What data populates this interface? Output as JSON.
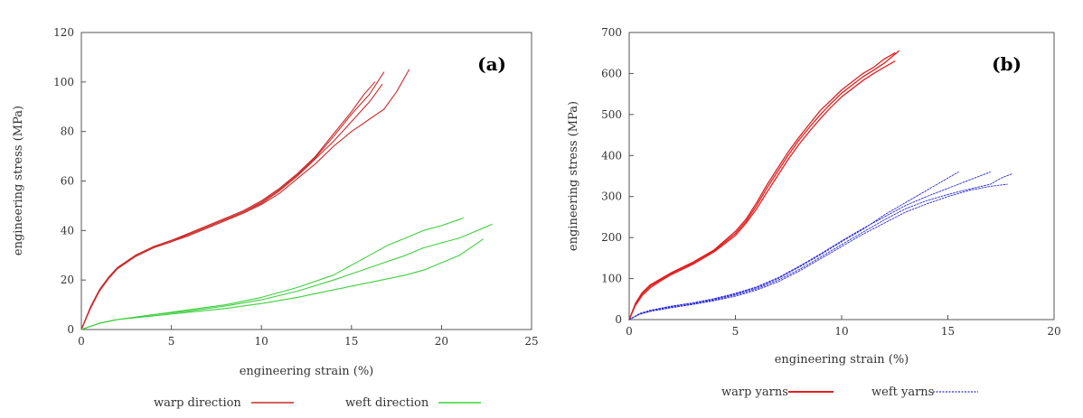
{
  "chart_data": [
    {
      "type": "line",
      "panel_label": "(a)",
      "xlabel": "engineering strain (%)",
      "ylabel": "engineering stress (MPa)",
      "xlim": [
        0,
        25
      ],
      "ylim": [
        0,
        120
      ],
      "xticks": [
        0,
        5,
        10,
        15,
        20,
        25
      ],
      "yticks": [
        0,
        20,
        40,
        60,
        80,
        100,
        120
      ],
      "grid": false,
      "legend_position": "bottom",
      "series": [
        {
          "name": "warp direction",
          "color": "#cc2b2b",
          "curves": [
            {
              "x": [
                0,
                0.5,
                1,
                1.5,
                2,
                3,
                4,
                5,
                6,
                7,
                8,
                9,
                10,
                11,
                12,
                13,
                14,
                15,
                15.7,
                16.3
              ],
              "y": [
                0,
                9,
                16,
                21,
                25,
                30,
                33.5,
                36,
                39,
                42,
                45,
                48,
                52,
                57,
                63,
                70,
                79,
                88,
                95,
                100
              ]
            },
            {
              "x": [
                0,
                0.5,
                1,
                1.5,
                2,
                3,
                4,
                5,
                6,
                7,
                8,
                9,
                10,
                11,
                12,
                13,
                14,
                15,
                16,
                16.8
              ],
              "y": [
                0,
                8.5,
                15.5,
                20.5,
                24.5,
                29.5,
                33,
                35.5,
                38.5,
                41.5,
                44.5,
                47.5,
                51.5,
                56.5,
                62.5,
                69.5,
                78,
                87,
                95,
                104
              ]
            },
            {
              "x": [
                0,
                0.5,
                1,
                1.5,
                2,
                3,
                4,
                5,
                6,
                7,
                8,
                9,
                10,
                11,
                12,
                13,
                14,
                15,
                16,
                16.8,
                17.5,
                18.2
              ],
              "y": [
                0,
                8.5,
                15.5,
                20.5,
                24.5,
                29.5,
                33,
                35.5,
                38,
                41,
                44,
                47,
                50.5,
                55,
                61,
                67,
                74,
                80,
                85,
                89,
                96,
                105
              ]
            },
            {
              "x": [
                0,
                0.5,
                1,
                1.5,
                2,
                3,
                4,
                5,
                6,
                7,
                8,
                9,
                10,
                11,
                12,
                13,
                14,
                15,
                16,
                16.7
              ],
              "y": [
                0,
                9,
                16,
                21,
                25,
                30,
                33.5,
                36,
                38.5,
                41.5,
                44.5,
                47.5,
                51,
                56,
                62,
                69,
                76,
                84,
                92,
                99
              ]
            }
          ]
        },
        {
          "name": "weft direction",
          "color": "#3fcf3f",
          "curves": [
            {
              "x": [
                0,
                1,
                2,
                4,
                6,
                8,
                10,
                12,
                14,
                16,
                17,
                18,
                19,
                20,
                21.2
              ],
              "y": [
                0,
                2.5,
                4,
                6,
                8,
                10,
                13,
                17,
                22,
                30,
                34,
                37,
                40,
                42,
                45
              ]
            },
            {
              "x": [
                0,
                1,
                2,
                4,
                6,
                8,
                10,
                12,
                14,
                16,
                18,
                19,
                20,
                21,
                22,
                22.8
              ],
              "y": [
                0,
                2.5,
                4,
                6,
                7.5,
                9.5,
                12,
                15.5,
                20,
                25,
                30,
                33,
                35,
                37,
                40,
                42.5
              ]
            },
            {
              "x": [
                0,
                1,
                2,
                4,
                6,
                8,
                10,
                12,
                14,
                16,
                18,
                19,
                20,
                21,
                22.3
              ],
              "y": [
                0,
                2.5,
                4,
                5.5,
                7,
                8.5,
                10.5,
                13,
                16,
                19,
                22,
                24,
                27,
                30,
                36.5
              ]
            }
          ]
        }
      ]
    },
    {
      "type": "line",
      "panel_label": "(b)",
      "xlabel": "engineering strain (%)",
      "ylabel": "engineering stress (MPa)",
      "xlim": [
        0,
        20
      ],
      "ylim": [
        0,
        700
      ],
      "xticks": [
        0,
        5,
        10,
        15,
        20
      ],
      "yticks": [
        0,
        100,
        200,
        300,
        400,
        500,
        600,
        700
      ],
      "grid": false,
      "legend_position": "bottom",
      "series": [
        {
          "name": "warp yarns",
          "color": "#e02020",
          "curves": [
            {
              "x": [
                0,
                0.3,
                0.6,
                1,
                1.5,
                2,
                3,
                4,
                5,
                5.5,
                6,
                6.5,
                7,
                7.5,
                8,
                8.5,
                9,
                9.5,
                10,
                10.5,
                11,
                11.5,
                12,
                12.5
              ],
              "y": [
                0,
                40,
                65,
                85,
                100,
                115,
                140,
                170,
                215,
                245,
                285,
                330,
                370,
                410,
                445,
                478,
                510,
                535,
                560,
                580,
                600,
                615,
                635,
                650
              ]
            },
            {
              "x": [
                0,
                0.3,
                0.6,
                1,
                1.5,
                2,
                3,
                4,
                5,
                5.5,
                6,
                6.5,
                7,
                7.5,
                8,
                8.5,
                9,
                9.5,
                10,
                10.5,
                11,
                11.5,
                12,
                12.7
              ],
              "y": [
                0,
                38,
                62,
                82,
                98,
                113,
                138,
                168,
                210,
                240,
                278,
                322,
                362,
                402,
                438,
                470,
                500,
                527,
                552,
                572,
                592,
                608,
                625,
                655
              ]
            },
            {
              "x": [
                0,
                0.3,
                0.6,
                1,
                1.5,
                2,
                3,
                4,
                5,
                5.5,
                6,
                6.5,
                7,
                7.5,
                8,
                8.5,
                9,
                9.5,
                10,
                10.5,
                11,
                11.5,
                12,
                12.5
              ],
              "y": [
                0,
                35,
                58,
                78,
                95,
                110,
                135,
                165,
                205,
                235,
                270,
                312,
                352,
                392,
                428,
                460,
                490,
                518,
                543,
                563,
                583,
                600,
                615,
                630
              ]
            }
          ]
        },
        {
          "name": "weft yarns",
          "color": "#2a2ad8",
          "curves": [
            {
              "x": [
                0,
                0.5,
                1,
                2,
                3,
                4,
                5,
                6,
                7,
                8,
                9,
                10,
                11,
                12,
                13,
                14,
                15,
                15.5
              ],
              "y": [
                0,
                15,
                22,
                32,
                40,
                50,
                62,
                78,
                100,
                128,
                158,
                190,
                220,
                255,
                285,
                315,
                345,
                360
              ]
            },
            {
              "x": [
                0,
                0.5,
                1,
                2,
                3,
                4,
                5,
                6,
                7,
                8,
                9,
                10,
                11,
                12,
                13,
                14,
                15,
                16,
                17,
                17.5,
                18
              ],
              "y": [
                0,
                14,
                21,
                30,
                38,
                48,
                60,
                75,
                96,
                122,
                152,
                183,
                213,
                243,
                270,
                290,
                305,
                318,
                330,
                345,
                355
              ]
            },
            {
              "x": [
                0,
                0.5,
                1,
                2,
                3,
                4,
                5,
                6,
                7,
                8,
                9,
                10,
                11,
                12,
                13,
                14,
                15,
                16,
                17,
                17.8
              ],
              "y": [
                0,
                13,
                20,
                29,
                37,
                46,
                57,
                72,
                92,
                118,
                148,
                178,
                208,
                235,
                262,
                282,
                300,
                315,
                325,
                330
              ]
            },
            {
              "x": [
                0,
                0.5,
                1,
                2,
                3,
                4,
                5,
                6,
                7,
                8,
                9,
                10,
                11,
                12,
                13,
                14,
                15,
                16,
                17
              ],
              "y": [
                0,
                15,
                23,
                33,
                41,
                51,
                64,
                80,
                102,
                130,
                160,
                192,
                222,
                250,
                278,
                300,
                320,
                340,
                360
              ]
            }
          ]
        }
      ]
    }
  ]
}
